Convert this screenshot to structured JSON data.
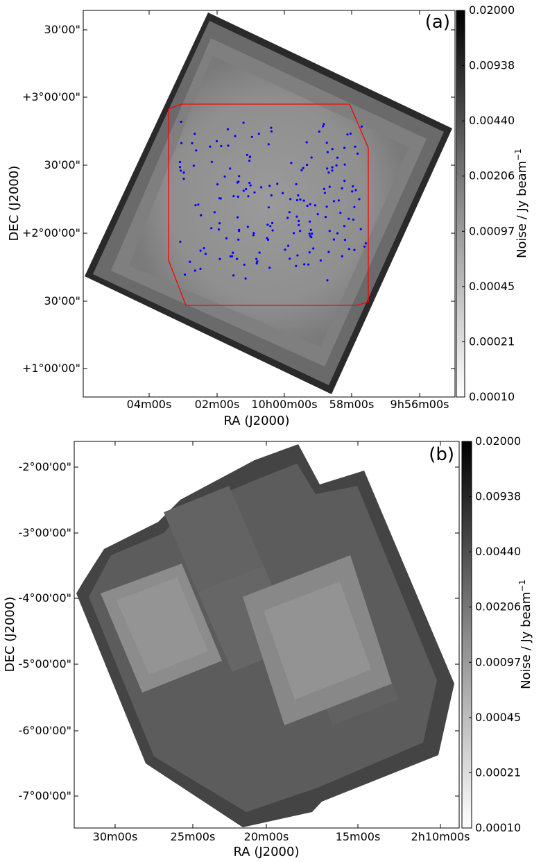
{
  "chart_data": [
    {
      "type": "heatmap",
      "panel_label": "(a)",
      "xlabel": "RA (J2000)",
      "ylabel": "DEC (J2000)",
      "xtick_labels": [
        "04m00s",
        "02m00s",
        "10h00m00s",
        "58m00s",
        "9h56m00s"
      ],
      "ytick_labels": [
        "30'00\"",
        "+3°00'00\"",
        "30'00\"",
        "+2°00'00\"",
        "30'00\"",
        "+1°00'00\""
      ],
      "colorbar": {
        "label": "Noise / Jy beam",
        "label_superscript": "−1",
        "scale": "log",
        "range": [
          0.0001,
          0.02
        ],
        "tick_labels": [
          "0.02000",
          "0.00938",
          "0.00440",
          "0.00206",
          "0.00097",
          "0.00045",
          "0.00021",
          "0.00010"
        ],
        "colormap": "greys"
      },
      "overlay_polygon_color": "#ff0000",
      "overlay_points_color": "#0000ff",
      "overlay_point_count": 180
    },
    {
      "type": "heatmap",
      "panel_label": "(b)",
      "xlabel": "RA (J2000)",
      "ylabel": "DEC (J2000)",
      "xtick_labels": [
        "30m00s",
        "25m00s",
        "20m00s",
        "15m00s",
        "2h10m00s"
      ],
      "ytick_labels": [
        "-2°00'00\"",
        "-3°00'00\"",
        "-4°00'00\"",
        "-5°00'00\"",
        "-6°00'00\"",
        "-7°00'00\""
      ],
      "colorbar": {
        "label": "Noise / Jy beam",
        "label_superscript": "−1",
        "scale": "log",
        "range": [
          0.0001,
          0.02
        ],
        "tick_labels": [
          "0.02000",
          "0.00938",
          "0.00440",
          "0.00206",
          "0.00097",
          "0.00045",
          "0.00021",
          "0.00010"
        ],
        "colormap": "greys"
      }
    }
  ]
}
